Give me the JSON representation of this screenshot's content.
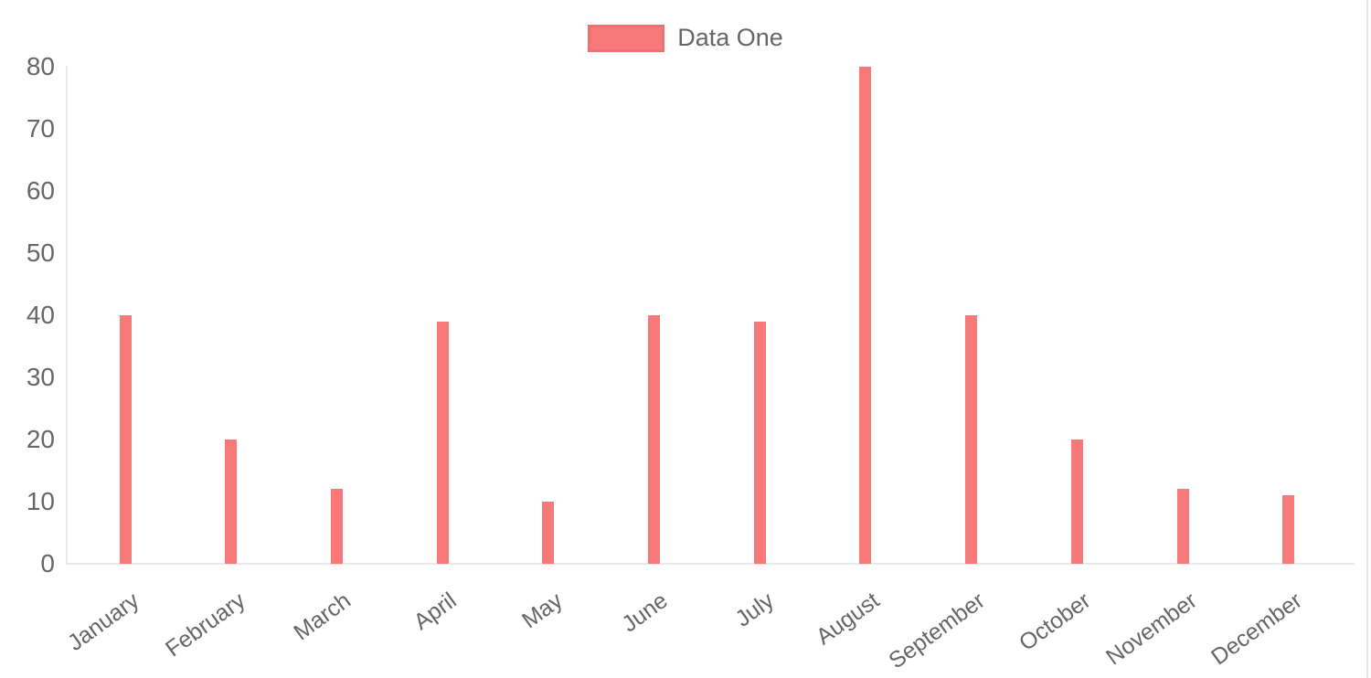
{
  "chart_data": {
    "type": "bar",
    "categories": [
      "January",
      "February",
      "March",
      "April",
      "May",
      "June",
      "July",
      "August",
      "September",
      "October",
      "November",
      "December"
    ],
    "series": [
      {
        "name": "Data One",
        "color": "#f87979",
        "values": [
          40,
          20,
          12,
          39,
          10,
          40,
          39,
          80,
          40,
          20,
          12,
          11
        ]
      }
    ],
    "title": "",
    "xlabel": "",
    "ylabel": "",
    "ylim": [
      0,
      80
    ],
    "yticks": [
      0,
      10,
      20,
      30,
      40,
      50,
      60,
      70,
      80
    ],
    "grid": false,
    "legend_position": "top"
  },
  "colors": {
    "bar": "#f87979",
    "tick_text": "#666666",
    "axis_line": "#e8e8e8"
  }
}
